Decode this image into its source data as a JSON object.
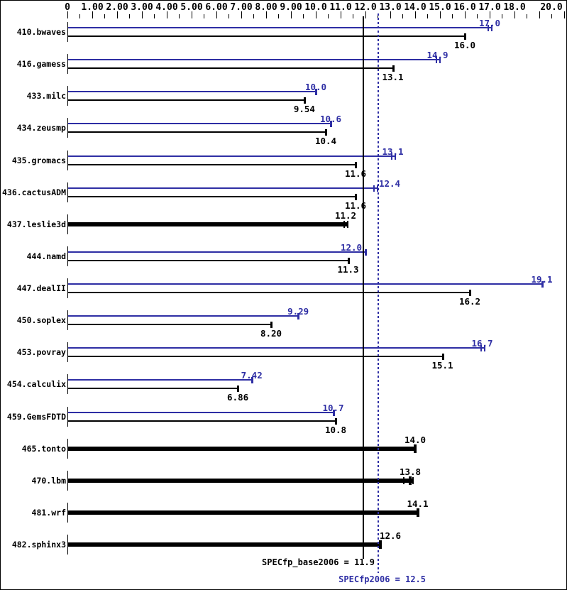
{
  "colors": {
    "peak_blue": "#2e2ea4",
    "base_black": "#000000",
    "background": "#ffffff"
  },
  "footer": {
    "base_label": "SPECfp_base2006 = 11.9",
    "peak_label": "SPECfp2006 = 12.5"
  },
  "chart_data": {
    "type": "bar",
    "orientation": "horizontal",
    "title": "",
    "xlabel": "",
    "ylabel": "",
    "xlim": [
      0,
      20
    ],
    "grid": false,
    "legend": "none",
    "x_axis": {
      "min": 0,
      "max": 20,
      "major_tick_step": 1,
      "minor_tick_step": 0.5,
      "tick_labels": [
        {
          "value": 0,
          "label": "0"
        },
        {
          "value": 1,
          "label": "1.00"
        },
        {
          "value": 2,
          "label": "2.00"
        },
        {
          "value": 3,
          "label": "3.00"
        },
        {
          "value": 4,
          "label": "4.00"
        },
        {
          "value": 5,
          "label": "5.00"
        },
        {
          "value": 6,
          "label": "6.00"
        },
        {
          "value": 7,
          "label": "7.00"
        },
        {
          "value": 8,
          "label": "8.00"
        },
        {
          "value": 9,
          "label": "9.00"
        },
        {
          "value": 10,
          "label": "10.0"
        },
        {
          "value": 11,
          "label": "11.0"
        },
        {
          "value": 12,
          "label": "12.0"
        },
        {
          "value": 13,
          "label": "13.0"
        },
        {
          "value": 14,
          "label": "14.0"
        },
        {
          "value": 15,
          "label": "15.0"
        },
        {
          "value": 16,
          "label": "16.0"
        },
        {
          "value": 17,
          "label": "17.0"
        },
        {
          "value": 18,
          "label": "18.0"
        },
        {
          "value": 20,
          "label": "20.0"
        }
      ]
    },
    "series": [
      {
        "name": "peak",
        "color": "#2e2ea4"
      },
      {
        "name": "base",
        "color": "#000000"
      }
    ],
    "benchmarks": [
      {
        "name": "410.bwaves",
        "peak": 17.0,
        "peak_label": "17.0",
        "peak_marks": [
          -2,
          3
        ],
        "base": 16.0,
        "base_label": "16.0"
      },
      {
        "name": "416.gamess",
        "peak": 14.9,
        "peak_label": "14.9",
        "peak_marks": [
          -2,
          3
        ],
        "base": 13.1,
        "base_label": "13.1"
      },
      {
        "name": "433.milc",
        "peak": 10.0,
        "peak_label": "10.0",
        "base": 9.54,
        "base_label": "9.54"
      },
      {
        "name": "434.zeusmp",
        "peak": 10.6,
        "peak_label": "10.6",
        "base": 10.4,
        "base_label": "10.4"
      },
      {
        "name": "435.gromacs",
        "peak": 13.1,
        "peak_label": "13.1",
        "peak_marks": [
          -2,
          3
        ],
        "base": 11.6,
        "base_label": "11.6"
      },
      {
        "name": "436.cactusADM",
        "peak": 12.4,
        "peak_label": "12.4",
        "peak_label_dx": 20,
        "peak_marks": [
          -2,
          3
        ],
        "base": 11.6,
        "base_label": "11.6"
      },
      {
        "name": "437.leslie3d",
        "single": 11.2,
        "single_label": "11.2",
        "single_marks": [
          -2,
          3
        ]
      },
      {
        "name": "444.namd",
        "peak": 12.0,
        "peak_label": "12.0",
        "peak_label_dx": -20,
        "base": 11.3,
        "base_label": "11.3"
      },
      {
        "name": "447.dealII",
        "peak": 19.1,
        "peak_label": "19.1",
        "base": 16.2,
        "base_label": "16.2"
      },
      {
        "name": "450.soplex",
        "peak": 9.29,
        "peak_label": "9.29",
        "base": 8.2,
        "base_label": "8.20"
      },
      {
        "name": "453.povray",
        "peak": 16.7,
        "peak_label": "16.7",
        "peak_marks": [
          -2,
          3
        ],
        "base": 15.1,
        "base_label": "15.1"
      },
      {
        "name": "454.calculix",
        "peak": 7.42,
        "peak_label": "7.42",
        "base": 6.86,
        "base_label": "6.86"
      },
      {
        "name": "459.GemsFDTD",
        "peak": 10.7,
        "peak_label": "10.7",
        "base": 10.8,
        "base_label": "10.8"
      },
      {
        "name": "465.tonto",
        "single": 14.0,
        "single_label": "14.0"
      },
      {
        "name": "470.lbm",
        "single": 13.8,
        "single_label": "13.8",
        "single_marks": [
          -9,
          0,
          4
        ]
      },
      {
        "name": "481.wrf",
        "single": 14.1,
        "single_label": "14.1"
      },
      {
        "name": "482.sphinx3",
        "single": 12.6,
        "single_label": "12.6",
        "single_label_dx": 14
      }
    ],
    "reference_lines": [
      {
        "name": "base_mean",
        "value": 11.9,
        "style": "solid",
        "color": "#000000",
        "label": "SPECfp_base2006 = 11.9"
      },
      {
        "name": "peak_mean",
        "value": 12.5,
        "style": "dotted",
        "color": "#2e2ea4",
        "label": "SPECfp2006 = 12.5"
      }
    ]
  }
}
